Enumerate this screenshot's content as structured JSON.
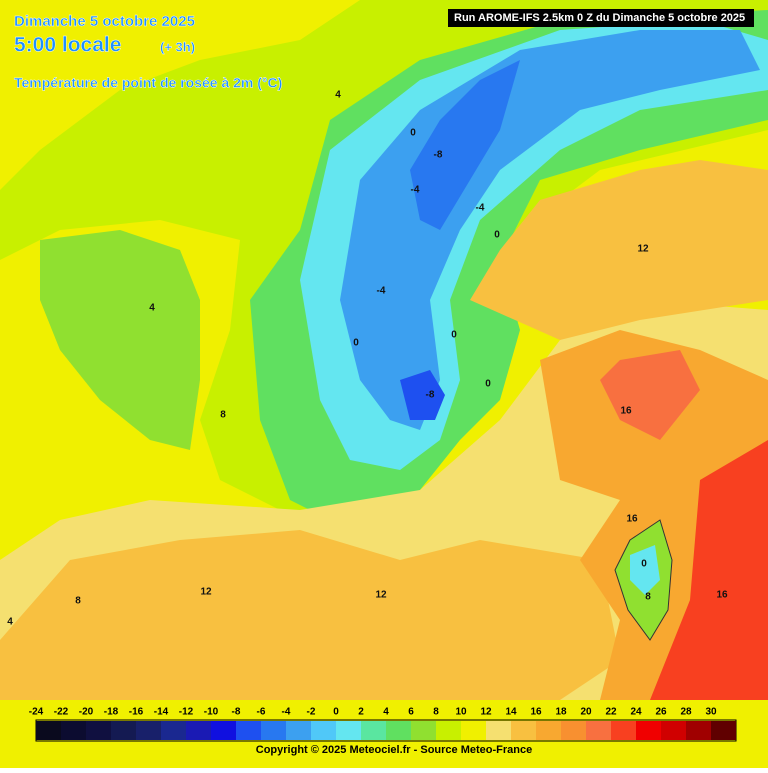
{
  "header": {
    "date": "Dimanche 5 octobre 2025",
    "time": "5:00 locale",
    "offset": "(+ 3h)",
    "parameter": "Température de point de rosée à 2m (°C)",
    "run": "Run AROME-IFS 2.5km 0 Z du Dimanche 5 octobre 2025"
  },
  "map_labels": [
    4,
    0,
    -8,
    -4,
    -4,
    0,
    12,
    -4,
    0,
    0,
    0,
    -8,
    4,
    8,
    16,
    16,
    12,
    12,
    8,
    4,
    0,
    8,
    16
  ],
  "legend": {
    "labels": [
      -24,
      -22,
      -20,
      -18,
      -16,
      -14,
      -12,
      -10,
      -8,
      -6,
      -4,
      -2,
      0,
      2,
      4,
      6,
      8,
      10,
      12,
      14,
      16,
      18,
      20,
      22,
      24,
      26,
      28,
      30
    ],
    "colors": [
      "#0a0a1e",
      "#0c0c30",
      "#101040",
      "#141a52",
      "#18206a",
      "#1a2890",
      "#1a1ab4",
      "#1010e0",
      "#1e50f0",
      "#2878f0",
      "#3ca0f0",
      "#50c8f8",
      "#64e6f0",
      "#5ae6a0",
      "#60e060",
      "#90e030",
      "#c8f000",
      "#f0f000",
      "#f5e070",
      "#f8c040",
      "#f8a830",
      "#f89030",
      "#f87040",
      "#f84020",
      "#f00000",
      "#d00000",
      "#a00000",
      "#600000"
    ]
  },
  "footer": {
    "copyright": "Copyright © 2025 Meteociel.fr - Source Meteo-France"
  }
}
